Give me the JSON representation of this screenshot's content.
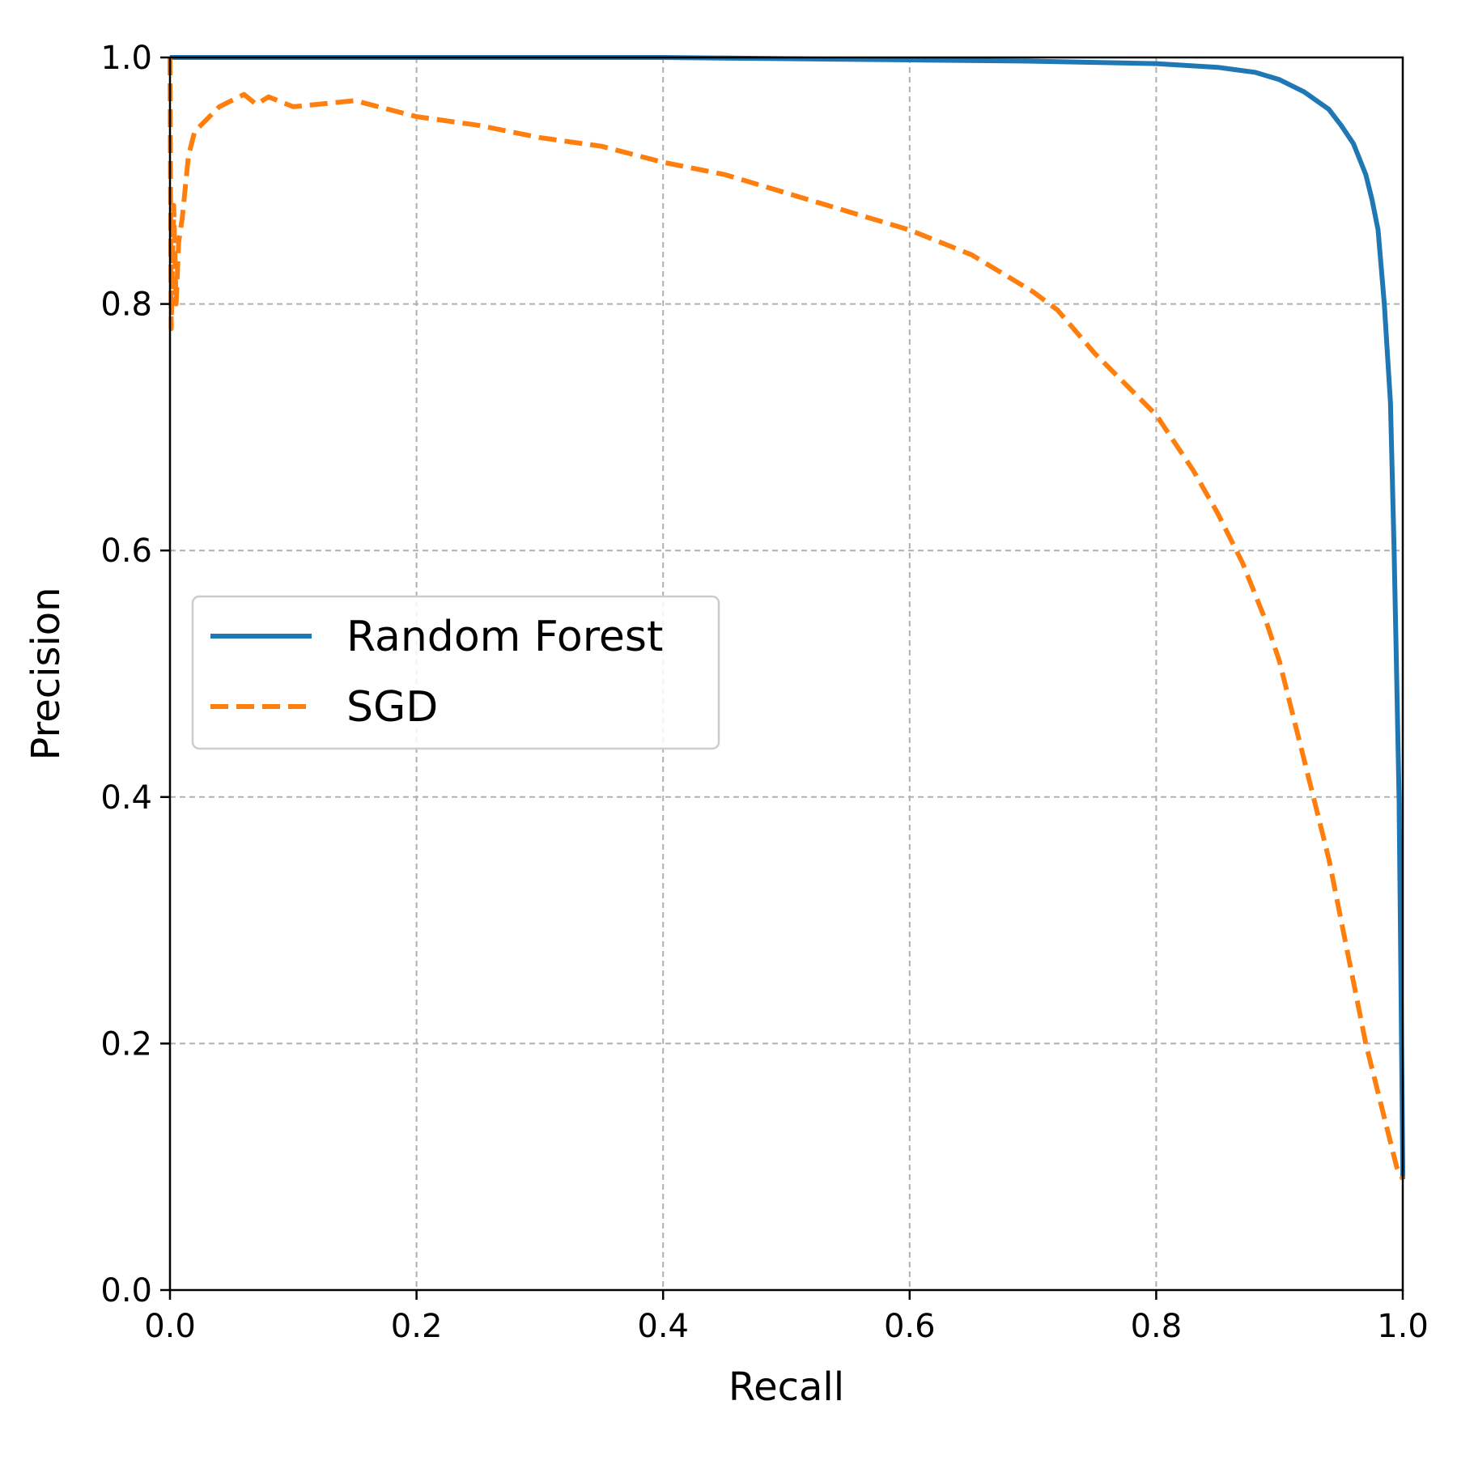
{
  "chart_data": {
    "type": "line",
    "title": "",
    "xlabel": "Recall",
    "ylabel": "Precision",
    "xlim": [
      0,
      1
    ],
    "ylim": [
      0,
      1
    ],
    "xticks": [
      "0.0",
      "0.2",
      "0.4",
      "0.6",
      "0.8",
      "1.0"
    ],
    "yticks": [
      "0.0",
      "0.2",
      "0.4",
      "0.6",
      "0.8",
      "1.0"
    ],
    "grid": true,
    "legend_position": "center-left",
    "series": [
      {
        "name": "Random Forest",
        "color": "#1f77b4",
        "line_style": "solid",
        "x": [
          0.0,
          0.1,
          0.2,
          0.3,
          0.4,
          0.5,
          0.6,
          0.7,
          0.8,
          0.85,
          0.88,
          0.9,
          0.92,
          0.94,
          0.95,
          0.96,
          0.97,
          0.975,
          0.98,
          0.985,
          0.99,
          0.993,
          0.995,
          0.997,
          0.998,
          0.999,
          1.0,
          1.0
        ],
        "y": [
          1.0,
          1.0,
          1.0,
          1.0,
          1.0,
          0.999,
          0.998,
          0.997,
          0.995,
          0.992,
          0.988,
          0.982,
          0.972,
          0.958,
          0.945,
          0.93,
          0.905,
          0.885,
          0.86,
          0.8,
          0.72,
          0.6,
          0.5,
          0.4,
          0.3,
          0.2,
          0.1,
          0.09
        ]
      },
      {
        "name": "SGD",
        "color": "#ff7f0e",
        "line_style": "dashed",
        "x": [
          0.0,
          0.001,
          0.002,
          0.003,
          0.004,
          0.005,
          0.007,
          0.01,
          0.015,
          0.02,
          0.03,
          0.04,
          0.05,
          0.06,
          0.07,
          0.08,
          0.1,
          0.12,
          0.15,
          0.2,
          0.25,
          0.3,
          0.35,
          0.4,
          0.45,
          0.5,
          0.55,
          0.6,
          0.65,
          0.7,
          0.72,
          0.75,
          0.8,
          0.83,
          0.85,
          0.87,
          0.89,
          0.9,
          0.91,
          0.92,
          0.93,
          0.94,
          0.95,
          0.96,
          0.97,
          0.98,
          0.99,
          0.995,
          1.0
        ],
        "y": [
          1.0,
          0.78,
          0.83,
          0.88,
          0.84,
          0.8,
          0.85,
          0.87,
          0.92,
          0.94,
          0.95,
          0.96,
          0.965,
          0.97,
          0.962,
          0.968,
          0.96,
          0.962,
          0.965,
          0.952,
          0.945,
          0.935,
          0.928,
          0.915,
          0.905,
          0.89,
          0.875,
          0.86,
          0.84,
          0.81,
          0.795,
          0.76,
          0.71,
          0.665,
          0.63,
          0.59,
          0.54,
          0.51,
          0.47,
          0.43,
          0.39,
          0.35,
          0.3,
          0.25,
          0.2,
          0.16,
          0.12,
          0.1,
          0.09
        ]
      }
    ]
  }
}
